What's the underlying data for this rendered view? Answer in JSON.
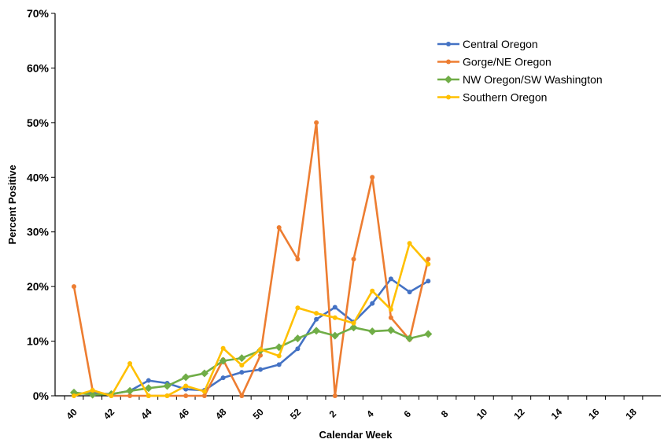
{
  "chart_data": {
    "type": "line",
    "title": "",
    "xlabel": "Calendar Week",
    "ylabel": "Percent Positive",
    "ylim": [
      0,
      70
    ],
    "y_ticks": [
      "0%",
      "10%",
      "20%",
      "30%",
      "40%",
      "50%",
      "60%",
      "70%"
    ],
    "x_categories": [
      "40",
      "41",
      "42",
      "43",
      "44",
      "45",
      "46",
      "47",
      "48",
      "49",
      "50",
      "51",
      "52",
      "53",
      "1",
      "2",
      "3",
      "4",
      "5",
      "6",
      "7",
      "8",
      "9",
      "10",
      "11",
      "12",
      "13",
      "14",
      "15",
      "16",
      "17",
      "18",
      "19"
    ],
    "x_tick_labels": [
      "40",
      "42",
      "44",
      "46",
      "48",
      "50",
      "52",
      "2",
      "4",
      "6",
      "8",
      "10",
      "12",
      "14",
      "16",
      "18"
    ],
    "grid": false,
    "legend_position": "top-right",
    "series": [
      {
        "name": "Central Oregon",
        "color": "#4472C4",
        "marker": "circle",
        "values": [
          0.3,
          0.5,
          0.3,
          0.9,
          2.8,
          2.3,
          1.2,
          1.0,
          3.3,
          4.3,
          4.8,
          5.7,
          8.6,
          14.0,
          16.2,
          13.5,
          16.9,
          21.4,
          19.0,
          21.0
        ]
      },
      {
        "name": "Gorge/NE Oregon",
        "color": "#ED7D31",
        "marker": "circle",
        "values": [
          20.0,
          1.0,
          0.0,
          0.0,
          0.0,
          0.0,
          0.0,
          0.0,
          6.6,
          0.0,
          7.4,
          30.8,
          25.0,
          50.0,
          0.0,
          25.0,
          40.0,
          14.3,
          10.3,
          25.0
        ]
      },
      {
        "name": "NW Oregon/SW Washington",
        "color": "#70AD47",
        "marker": "diamond",
        "values": [
          0.6,
          0.2,
          0.3,
          0.9,
          1.4,
          1.8,
          3.4,
          4.1,
          6.4,
          6.9,
          8.3,
          8.9,
          10.5,
          11.9,
          11.0,
          12.5,
          11.8,
          12.0,
          10.5,
          11.3
        ]
      },
      {
        "name": "Southern Oregon",
        "color": "#FFC000",
        "marker": "circle",
        "values": [
          0.0,
          1.0,
          0.0,
          5.9,
          0.0,
          0.0,
          1.8,
          0.8,
          8.7,
          5.6,
          8.5,
          7.3,
          16.1,
          15.1,
          14.3,
          13.3,
          19.2,
          15.8,
          27.9,
          24.1
        ]
      }
    ]
  }
}
